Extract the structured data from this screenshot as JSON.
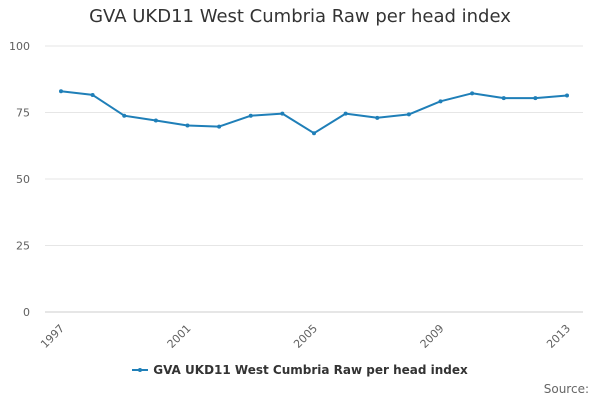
{
  "chart_data": {
    "type": "line",
    "title": "GVA UKD11 West Cumbria Raw per head index",
    "x": [
      1997,
      1998,
      1999,
      2000,
      2001,
      2002,
      2003,
      2004,
      2005,
      2006,
      2007,
      2008,
      2009,
      2010,
      2011,
      2012,
      2013
    ],
    "x_tick_labels": [
      "1997",
      "2001",
      "2005",
      "2009",
      "2013"
    ],
    "x_tick_values": [
      1997,
      2001,
      2005,
      2009,
      2013
    ],
    "y_tick_values": [
      0,
      25,
      50,
      75,
      100
    ],
    "y_tick_labels": [
      "0",
      "25",
      "50",
      "75",
      "100"
    ],
    "ylim": [
      0,
      100
    ],
    "xlabel": "",
    "ylabel": "",
    "grid": true,
    "legend_position": "bottom-center",
    "series": [
      {
        "name": "GVA UKD11 West Cumbria Raw per head index",
        "color": "#1f7fb8",
        "values": [
          83.0,
          81.6,
          73.8,
          72.0,
          70.1,
          69.7,
          73.8,
          74.6,
          67.2,
          74.6,
          73.0,
          74.3,
          79.2,
          82.2,
          80.4,
          80.4,
          81.4
        ]
      }
    ]
  },
  "source_label": "Source:"
}
